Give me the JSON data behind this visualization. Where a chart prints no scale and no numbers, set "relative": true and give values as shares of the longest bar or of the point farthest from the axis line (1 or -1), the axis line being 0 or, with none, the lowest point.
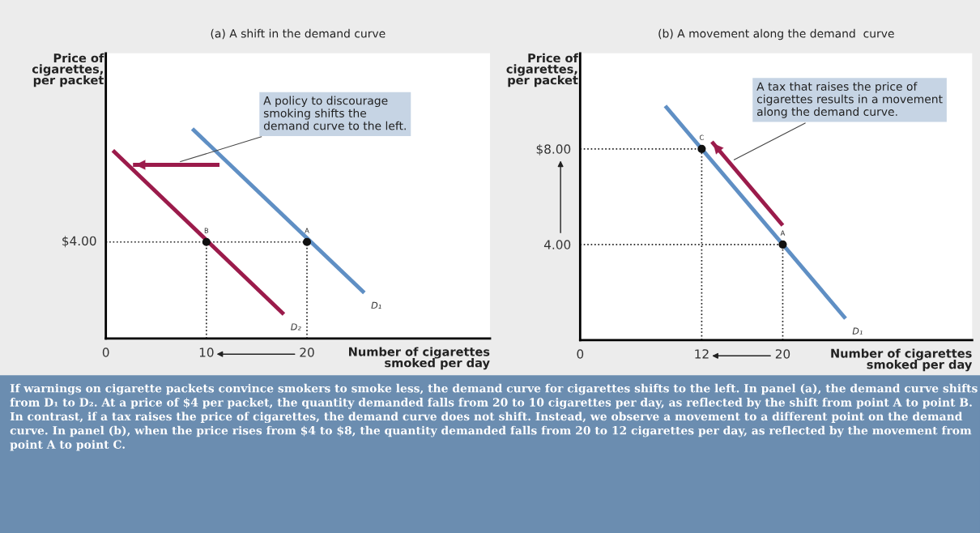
{
  "chart_data": [
    {
      "type": "line",
      "title": "(a) A shift in the demand curve",
      "xlabel": "Number of cigarettes\nsmoked per day",
      "ylabel": "Price of\ncigarettes,\nper packet",
      "relative": true,
      "xlim": [
        0,
        38.2
      ],
      "xticks": [
        0,
        10,
        20
      ],
      "grid": false,
      "legend": false,
      "series": [
        {
          "x": [
            0,
            20
          ],
          "values": [
            0.46,
            0.46
          ],
          "color": "#222222",
          "line_style": "dotted"
        },
        {
          "x": [
            10,
            10
          ],
          "values": [
            0,
            0.46
          ],
          "color": "#222222",
          "line_style": "dotted"
        },
        {
          "x": [
            20,
            20
          ],
          "values": [
            0,
            0.46
          ],
          "color": "#222222",
          "line_style": "dotted"
        },
        {
          "name": "D₁",
          "x": [
            8.6,
            25.7
          ],
          "values": [
            1,
            0.218
          ],
          "color": "#5f8fc4"
        },
        {
          "name": "D₂",
          "x": [
            0.7,
            17.7
          ],
          "values": [
            0.897,
            0.115
          ],
          "color": "#9b1b4b"
        },
        {
          "x": [
            11.3,
            2.7
          ],
          "values": [
            0.828,
            0.828
          ],
          "color": "#9b1b4b"
        },
        {
          "type": "scatter",
          "name": "A",
          "x": [
            20
          ],
          "values": [
            0.46
          ],
          "color": "#111111",
          "marker": "circle"
        },
        {
          "type": "scatter",
          "name": "B",
          "x": [
            10
          ],
          "values": [
            0.46
          ],
          "color": "#111111",
          "marker": "circle"
        }
      ],
      "annotations": [
        "$4.00",
        {
          "text": "A policy to discourage\nsmoking shifts the\ndemand curve to the left.",
          "x": 7.2,
          "y": 0.84
        }
      ]
    },
    {
      "type": "line",
      "title": "(b) A movement along the demand  curve",
      "xlabel": "Number of cigarettes\nsmoked per day",
      "ylabel": "Price of\ncigarettes,\nper packet",
      "xlim": [
        0,
        38.7
      ],
      "ylim": [
        0,
        12
      ],
      "xticks": [
        0,
        12,
        20
      ],
      "yticks": [
        {
          "value": 4,
          "label": "4.00"
        },
        {
          "value": 8,
          "label": "$8.00"
        }
      ],
      "grid": false,
      "legend": false,
      "series": [
        {
          "x": [
            0,
            20
          ],
          "values": [
            4,
            4
          ],
          "color": "#222222",
          "line_style": "dotted"
        },
        {
          "x": [
            0,
            12
          ],
          "values": [
            8,
            8
          ],
          "color": "#222222",
          "line_style": "dotted"
        },
        {
          "x": [
            12,
            12
          ],
          "values": [
            0,
            8
          ],
          "color": "#222222",
          "line_style": "dotted"
        },
        {
          "x": [
            20,
            20
          ],
          "values": [
            0,
            4
          ],
          "color": "#222222",
          "line_style": "dotted"
        },
        {
          "name": "D₁",
          "x": [
            8.4,
            26.2
          ],
          "values": [
            9.8,
            0.9
          ],
          "color": "#5f8fc4"
        },
        {
          "x": [
            20,
            13
          ],
          "values": [
            4.8,
            8.3
          ],
          "color": "#9b1b4b"
        },
        {
          "type": "scatter",
          "name": "A",
          "x": [
            20
          ],
          "values": [
            4
          ],
          "color": "#111111",
          "marker": "circle"
        },
        {
          "type": "scatter",
          "name": "C",
          "x": [
            12
          ],
          "values": [
            8
          ],
          "color": "#111111",
          "marker": "circle"
        }
      ],
      "annotations": [
        {
          "text": "A tax that raises the price of\ncigarettes results in a movement\nalong the demand curve.",
          "x": 15.0,
          "y": 7.5
        },
        "If warnings on cigarette packets convince smokers to smoke less, the demand curve for cigarettes shifts to the left. In panel (a), the demand curve shifts from D₁ to D₂. At a price of $4 per packet, the quantity demanded falls from 20 to 10 cigarettes per day, as reflected by the shift from point A to point B. In contrast, if a tax raises the price of cigarettes, the demand curve does not shift. Instead, we observe a movement to a different point on the demand curve. In panel (b), when the price rises from $4 to $8, the quantity demanded falls from 20 to 12 cigarettes per day, as reflected by the movement from point A to point C."
      ]
    }
  ]
}
